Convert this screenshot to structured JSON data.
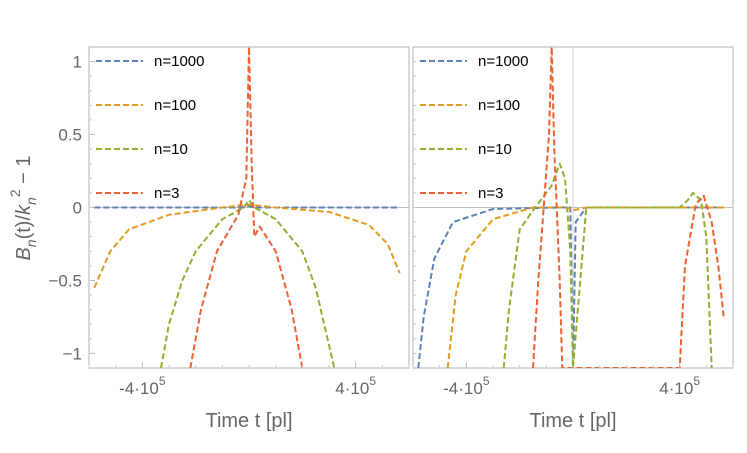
{
  "chart_data": [
    {
      "type": "line",
      "panel": "left",
      "xlabel": "Time t [pl]",
      "ylabel": "B_n(t)/k_n^2 - 1",
      "xlim": [
        -600000,
        600000
      ],
      "ylim": [
        -1.1,
        1.1
      ],
      "xticks": [
        {
          "value": -400000,
          "base": "-4·10",
          "exp": "5"
        },
        {
          "value": 400000,
          "base": "4·10",
          "exp": "5"
        }
      ],
      "yticks": [
        {
          "value": 1,
          "label": "1"
        },
        {
          "value": 0.5,
          "label": "0.5"
        },
        {
          "value": 0,
          "label": "0"
        },
        {
          "value": -0.5,
          "label": "-0.5"
        },
        {
          "value": -1,
          "label": "-1"
        }
      ],
      "series": [
        {
          "name": "n=1000",
          "color": "#5E81B5",
          "points": [
            [
              -580000,
              0
            ],
            [
              -300000,
              0
            ],
            [
              -20000,
              0
            ],
            [
              0,
              0.01
            ],
            [
              20000,
              0
            ],
            [
              300000,
              0
            ],
            [
              565000,
              0
            ]
          ]
        },
        {
          "name": "n=100",
          "color": "#E19C24",
          "points": [
            [
              -580000,
              -0.55
            ],
            [
              -520000,
              -0.3
            ],
            [
              -450000,
              -0.15
            ],
            [
              -300000,
              -0.05
            ],
            [
              -100000,
              0
            ],
            [
              0,
              0.02
            ],
            [
              100000,
              0
            ],
            [
              300000,
              -0.03
            ],
            [
              450000,
              -0.12
            ],
            [
              520000,
              -0.25
            ],
            [
              565000,
              -0.45
            ]
          ]
        },
        {
          "name": "n=10",
          "color": "#8FB032",
          "points": [
            [
              -330000,
              -1.1
            ],
            [
              -300000,
              -0.8
            ],
            [
              -250000,
              -0.5
            ],
            [
              -200000,
              -0.3
            ],
            [
              -100000,
              -0.08
            ],
            [
              -20000,
              0
            ],
            [
              0,
              0.05
            ],
            [
              20000,
              0
            ],
            [
              100000,
              -0.08
            ],
            [
              200000,
              -0.3
            ],
            [
              250000,
              -0.55
            ],
            [
              320000,
              -1.1
            ]
          ]
        },
        {
          "name": "n=3",
          "color": "#EB6235",
          "points": [
            [
              -220000,
              -1.1
            ],
            [
              -180000,
              -0.7
            ],
            [
              -120000,
              -0.3
            ],
            [
              -40000,
              -0.05
            ],
            [
              -10000,
              0.2
            ],
            [
              0,
              1.1
            ],
            [
              10000,
              0.3
            ],
            [
              20000,
              -0.2
            ],
            [
              40000,
              -0.13
            ],
            [
              100000,
              -0.3
            ],
            [
              160000,
              -0.7
            ],
            [
              200000,
              -1.1
            ]
          ]
        }
      ]
    },
    {
      "type": "line",
      "panel": "right",
      "xlabel": "Time t [pl]",
      "xlim": [
        -600000,
        600000
      ],
      "ylim": [
        -1.1,
        1.1
      ],
      "xticks": [
        {
          "value": -400000,
          "base": "-4·10",
          "exp": "5"
        },
        {
          "value": 400000,
          "base": "4·10",
          "exp": "5"
        }
      ],
      "annotations": [
        "vertical line at t = 0"
      ],
      "series": [
        {
          "name": "n=1000",
          "color": "#5E81B5",
          "points": [
            [
              -580000,
              -1.1
            ],
            [
              -560000,
              -0.75
            ],
            [
              -520000,
              -0.35
            ],
            [
              -450000,
              -0.1
            ],
            [
              -300000,
              -0.01
            ],
            [
              -50000,
              0
            ],
            [
              -10000,
              0
            ],
            [
              0,
              -1.1
            ],
            [
              10000,
              -0.1
            ],
            [
              50000,
              0
            ],
            [
              565000,
              0
            ]
          ]
        },
        {
          "name": "n=100",
          "color": "#E19C24",
          "points": [
            [
              -470000,
              -1.1
            ],
            [
              -440000,
              -0.6
            ],
            [
              -400000,
              -0.3
            ],
            [
              -300000,
              -0.08
            ],
            [
              -150000,
              0
            ],
            [
              -20000,
              0
            ],
            [
              0,
              -0.02
            ],
            [
              50000,
              0
            ],
            [
              565000,
              0
            ]
          ]
        },
        {
          "name": "n=10",
          "color": "#8FB032",
          "points": [
            [
              -260000,
              -1.1
            ],
            [
              -240000,
              -0.7
            ],
            [
              -200000,
              -0.15
            ],
            [
              -150000,
              -0.02
            ],
            [
              -80000,
              0.15
            ],
            [
              -50000,
              0.3
            ],
            [
              -30000,
              0.2
            ],
            [
              -10000,
              -0.3
            ],
            [
              0,
              -1.1
            ],
            [
              50000,
              0
            ],
            [
              300000,
              0
            ],
            [
              400000,
              0
            ],
            [
              430000,
              0.05
            ],
            [
              450000,
              0.1
            ],
            [
              480000,
              0.05
            ],
            [
              500000,
              -0.2
            ],
            [
              520000,
              -1.1
            ]
          ]
        },
        {
          "name": "n=3",
          "color": "#EB6235",
          "points": [
            [
              -150000,
              -1.1
            ],
            [
              -130000,
              -0.5
            ],
            [
              -110000,
              0
            ],
            [
              -90000,
              0.5
            ],
            [
              -80000,
              1.1
            ],
            [
              -70000,
              0.4
            ],
            [
              -50000,
              -0.5
            ],
            [
              -40000,
              -1.1
            ],
            [
              400000,
              -1.1
            ],
            [
              420000,
              -0.4
            ],
            [
              460000,
              0.02
            ],
            [
              490000,
              0.08
            ],
            [
              520000,
              -0.1
            ],
            [
              545000,
              -0.4
            ],
            [
              565000,
              -0.75
            ]
          ]
        }
      ]
    }
  ]
}
